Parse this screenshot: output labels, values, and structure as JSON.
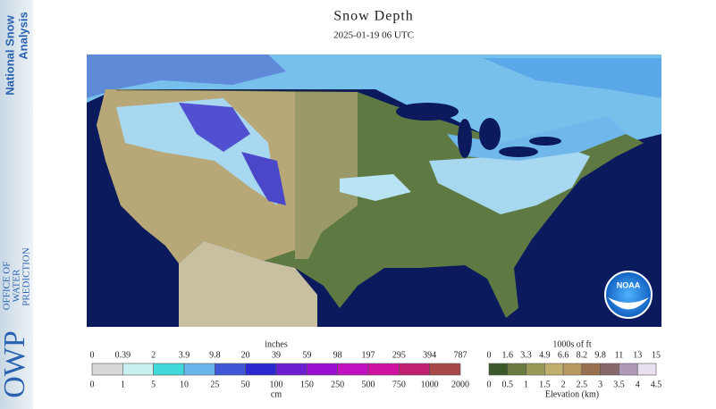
{
  "sidebar": {
    "title_lines": [
      "National Snow",
      "Analysis"
    ],
    "logo": "OWP",
    "org_lines": [
      "OFFICE OF",
      "WATER",
      "PREDICTION"
    ]
  },
  "header": {
    "title": "Snow Depth",
    "date": "2025-01-19 06 UTC"
  },
  "map": {
    "logo": "NOAA"
  },
  "snow_legend": {
    "top_unit": "inches",
    "top_labels": [
      "0",
      "0.39",
      "2",
      "3.9",
      "9.8",
      "20",
      "39",
      "59",
      "98",
      "197",
      "295",
      "394",
      "787"
    ],
    "bottom_labels": [
      "0",
      "1",
      "5",
      "10",
      "25",
      "50",
      "100",
      "150",
      "250",
      "500",
      "750",
      "1000",
      "2000"
    ],
    "bottom_unit": "cm",
    "colors": [
      "#d8d8d8",
      "#c8f0f0",
      "#40d8d8",
      "#6ab4ec",
      "#3f58d8",
      "#2a2ad0",
      "#6a1ed0",
      "#9a10d0",
      "#c010c0",
      "#d010a0",
      "#c02070",
      "#a84848"
    ]
  },
  "elevation_legend": {
    "top_unit": "1000s of ft",
    "top_labels": [
      "0",
      "1.6",
      "3.3",
      "4.9",
      "6.6",
      "8.2",
      "9.8",
      "11",
      "13",
      "15"
    ],
    "bottom_labels": [
      "0",
      "0.5",
      "1",
      "1.5",
      "2",
      "2.5",
      "3",
      "3.5",
      "4",
      "4.5"
    ],
    "bottom_unit": "Elevation (km)",
    "colors": [
      "#3a5a2a",
      "#6a7a40",
      "#9a9a58",
      "#c0b070",
      "#b89860",
      "#987050",
      "#886868",
      "#b098b8",
      "#e8e0f0"
    ]
  }
}
